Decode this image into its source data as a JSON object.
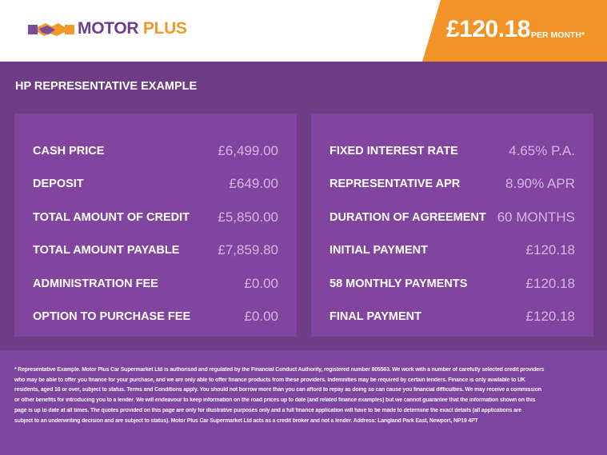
{
  "header": {
    "logo": {
      "brand_a": "MOTOR",
      "brand_b": "PLUS"
    },
    "price": "£120.18",
    "price_suffix": "PER MONTH*",
    "colors": {
      "orange": "#f39226",
      "purple": "#6f3d85"
    }
  },
  "title": "HP REPRESENTATIVE EXAMPLE",
  "left_panel": [
    {
      "label": "CASH PRICE",
      "value": "£6,499.00"
    },
    {
      "label": "DEPOSIT",
      "value": "£649.00"
    },
    {
      "label": "TOTAL AMOUNT OF CREDIT",
      "value": "£5,850.00"
    },
    {
      "label": "TOTAL AMOUNT PAYABLE",
      "value": "£7,859.80"
    },
    {
      "label": "ADMINISTRATION FEE",
      "value": "£0.00"
    },
    {
      "label": "OPTION TO PURCHASE FEE",
      "value": "£0.00"
    }
  ],
  "right_panel": [
    {
      "label": "FIXED INTEREST RATE",
      "value": "4.65% P.A."
    },
    {
      "label": "REPRESENTATIVE APR",
      "value": "8.90% APR"
    },
    {
      "label": "DURATION OF AGREEMENT",
      "value": "60 MONTHS"
    },
    {
      "label": "INITIAL PAYMENT",
      "value": "£120.18"
    },
    {
      "label": "58 MONTHLY PAYMENTS",
      "value": "£120.18"
    },
    {
      "label": "FINAL PAYMENT",
      "value": "£120.18"
    }
  ],
  "disclaimer": [
    "* Representative Example. Motor Plus Car Supermarket Ltd is authorised and regulated by the Financial Conduct Authority, registered number 805563. We work with a number of carefully selected credit providers",
    "who may be able to offer you finance for your purchase, and we are only able to offer finance products from these providers. Indemnities may be required by certain lenders. Finance is only available to UK",
    "residents, aged 18 or over, subject to status. Terms and Conditions apply. You should not borrow more than you can afford to repay as doing so can cause you financial difficulties. We may receive a commission",
    "or other benefits for introducing you to a lender. We will endeavour to keep information on the road prices up to date (and related finance examples) but we cannot guarantee that the information shown on this",
    "page is up to date at all times. The quotes provided on this page are only for illustrative purposes only and a full finance application will have to be made to determine the exact details (all applications are",
    "subject to an underwriting decision and are subject to status). Motor Plus Car Supermarket Ltd acts as a credit broker and not a lender. Address: Langland Park East, Newport, NP19 4PT"
  ]
}
